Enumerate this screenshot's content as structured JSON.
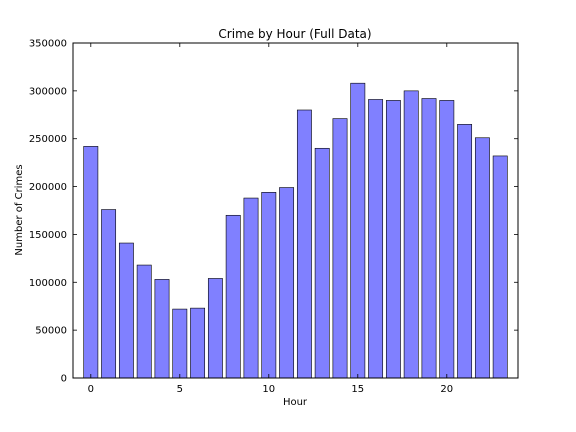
{
  "chart_data": {
    "type": "bar",
    "title": "Crime by Hour (Full Data)",
    "xlabel": "Hour",
    "ylabel": "Number of Crimes",
    "x": [
      0,
      1,
      2,
      3,
      4,
      5,
      6,
      7,
      8,
      9,
      10,
      11,
      12,
      13,
      14,
      15,
      16,
      17,
      18,
      19,
      20,
      21,
      22,
      23
    ],
    "values": [
      242000,
      176000,
      141000,
      118000,
      103000,
      72000,
      73000,
      104000,
      170000,
      188000,
      194000,
      199000,
      280000,
      240000,
      271000,
      308000,
      291000,
      290000,
      300000,
      292000,
      290000,
      265000,
      251000,
      232000
    ],
    "xlim": [
      -1,
      24
    ],
    "ylim": [
      0,
      350000
    ],
    "xticks": [
      0,
      5,
      10,
      15,
      20
    ],
    "yticks": [
      0,
      50000,
      100000,
      150000,
      200000,
      250000,
      300000,
      350000
    ],
    "bar_color": "#8080ff",
    "edge_color": "#000000",
    "grid": false,
    "legend": "none"
  }
}
